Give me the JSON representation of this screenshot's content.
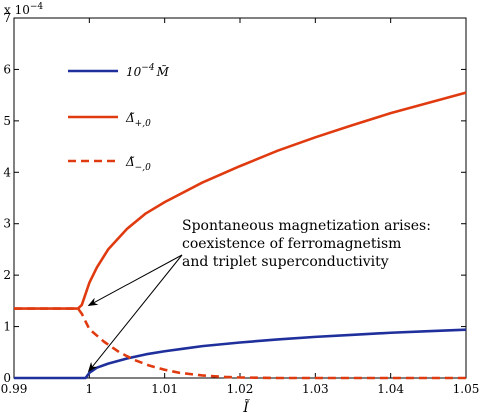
{
  "chart_data": {
    "type": "line",
    "title": "",
    "xlabel": "Ĩ",
    "ylabel": "",
    "y_multiplier_label": "x 10",
    "y_multiplier_exponent": "−4",
    "xlim": [
      0.99,
      1.05
    ],
    "ylim": [
      0,
      7
    ],
    "xticks": [
      "0.99",
      "1",
      "1.01",
      "1.02",
      "1.03",
      "1.04",
      "1.05"
    ],
    "yticks": [
      "0",
      "1",
      "2",
      "3",
      "4",
      "5",
      "6",
      "7"
    ],
    "grid": false,
    "legend_position": "top-left",
    "series": [
      {
        "name": "10⁻⁴ M̃",
        "color": "#1f2f9c",
        "style": "solid",
        "x": [
          0.99,
          0.995,
          0.9995,
          1.0,
          1.001,
          1.0025,
          1.005,
          1.0075,
          1.01,
          1.0125,
          1.015,
          1.02,
          1.025,
          1.03,
          1.035,
          1.04,
          1.045,
          1.05
        ],
        "y": [
          0,
          0,
          0,
          0.1,
          0.2,
          0.28,
          0.38,
          0.46,
          0.52,
          0.57,
          0.62,
          0.69,
          0.75,
          0.8,
          0.84,
          0.88,
          0.91,
          0.94
        ]
      },
      {
        "name": "Δ̃₊,₀",
        "color": "#e03b10",
        "style": "solid",
        "x": [
          0.99,
          0.995,
          0.9985,
          0.999,
          1.0,
          1.001,
          1.0025,
          1.005,
          1.0075,
          1.01,
          1.015,
          1.02,
          1.025,
          1.03,
          1.035,
          1.04,
          1.045,
          1.05
        ],
        "y": [
          1.35,
          1.35,
          1.35,
          1.42,
          1.85,
          2.15,
          2.5,
          2.9,
          3.2,
          3.42,
          3.8,
          4.12,
          4.42,
          4.68,
          4.92,
          5.15,
          5.35,
          5.55
        ]
      },
      {
        "name": "Δ̃₋,₀",
        "color": "#e03b10",
        "style": "dashed",
        "x": [
          0.99,
          0.995,
          0.9985,
          0.999,
          1.0,
          1.002,
          1.004,
          1.006,
          1.008,
          1.01,
          1.012,
          1.015,
          1.018,
          1.02,
          1.025,
          1.03,
          1.04,
          1.05
        ],
        "y": [
          1.35,
          1.35,
          1.35,
          1.25,
          0.95,
          0.7,
          0.5,
          0.35,
          0.24,
          0.16,
          0.1,
          0.05,
          0.02,
          0.01,
          0,
          0,
          0,
          0
        ]
      }
    ],
    "legend": [
      {
        "base": "10",
        "sup": "−4",
        "tail": "M̃"
      },
      {
        "base": "Δ̃",
        "sub": "+,0"
      },
      {
        "base": "Δ̃",
        "sub": "−,0"
      }
    ],
    "annotation": {
      "lines": [
        "Spontaneous magnetization arises:",
        "coexistence of ferromagnetism",
        "and triplet superconductivity"
      ],
      "arrow_targets": [
        {
          "x": 0.9995,
          "y": 1.35
        },
        {
          "x": 0.9995,
          "y": 0.07
        }
      ]
    }
  }
}
